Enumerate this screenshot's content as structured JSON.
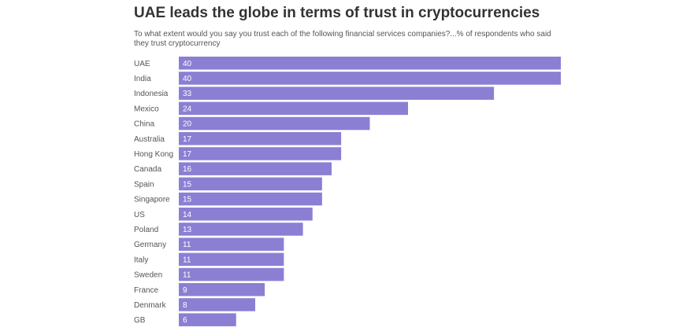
{
  "chart_data": {
    "type": "bar",
    "orientation": "horizontal",
    "title": "UAE leads the globe in terms of trust in cryptocurrencies",
    "subtitle": "To what extent would you say you trust each of the following financial services companies?...% of respondents who said they trust cryptocurrency",
    "categories": [
      "UAE",
      "India",
      "Indonesia",
      "Mexico",
      "China",
      "Australia",
      "Hong Kong",
      "Canada",
      "Spain",
      "Singapore",
      "US",
      "Poland",
      "Germany",
      "Italy",
      "Sweden",
      "France",
      "Denmark",
      "GB"
    ],
    "values": [
      40,
      40,
      33,
      24,
      20,
      17,
      17,
      16,
      15,
      15,
      14,
      13,
      11,
      11,
      11,
      9,
      8,
      6
    ],
    "xlim": [
      0,
      40
    ],
    "grid": false,
    "legend": "none",
    "bar_color": "#8b7fd4"
  }
}
